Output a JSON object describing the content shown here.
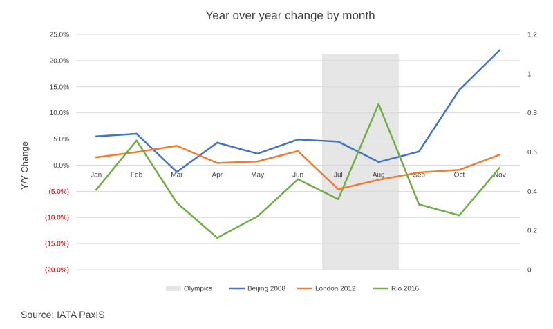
{
  "source_note": "Source: IATA PaxIS",
  "chart_data": {
    "type": "line",
    "title": "Year over year change by month",
    "ylabel": "Y/Y Change",
    "xlabel": "",
    "categories": [
      "Jan",
      "Feb",
      "Mar",
      "Apr",
      "May",
      "Jun",
      "Jul",
      "Aug",
      "Sep",
      "Oct",
      "Nov"
    ],
    "ylim": [
      -20,
      25
    ],
    "y_ticks": [
      "25.0%",
      "20.0%",
      "15.0%",
      "10.0%",
      "5.0%",
      "0.0%",
      "(5.0%)",
      "(10.0%)",
      "(15.0%)",
      "(20.0%)"
    ],
    "y_tick_values": [
      25,
      20,
      15,
      10,
      5,
      0,
      -5,
      -10,
      -15,
      -20
    ],
    "y2lim": [
      0,
      1.2
    ],
    "y2_ticks": [
      "1.2",
      "1",
      "0.8",
      "0.6",
      "0.4",
      "0.2",
      "0"
    ],
    "y2_tick_values": [
      1.2,
      1,
      0.8,
      0.6,
      0.4,
      0.2,
      0
    ],
    "highlight": {
      "name": "Olympics",
      "from_category": 6.5,
      "to_category": 7.5,
      "color": "#e6e6e6"
    },
    "series": [
      {
        "name": "Beijing 2008",
        "color": "#4472c4",
        "values": [
          5.5,
          6.0,
          -1.3,
          4.3,
          2.2,
          4.9,
          4.5,
          0.6,
          2.6,
          14.4,
          22.0
        ]
      },
      {
        "name": "London 2012",
        "color": "#ed7d31",
        "values": [
          1.5,
          2.5,
          3.7,
          0.4,
          0.7,
          2.7,
          -4.6,
          -2.8,
          -1.4,
          -0.9,
          2.0
        ]
      },
      {
        "name": "Rio 2016",
        "color": "#70ad47",
        "values": [
          -4.7,
          4.7,
          -7.2,
          -13.9,
          -9.8,
          -2.7,
          -6.5,
          11.7,
          -7.5,
          -9.6,
          -0.5
        ]
      }
    ],
    "negative_tick_color": "#c00000",
    "tick_color": "#404040",
    "grid": true,
    "legend_position": "bottom"
  }
}
